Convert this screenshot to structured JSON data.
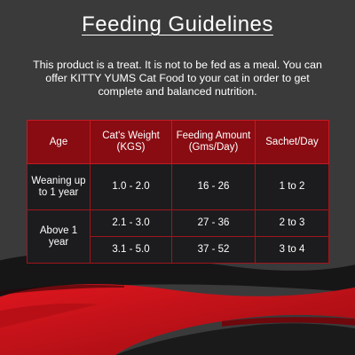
{
  "title": "Feeding Guidelines",
  "intro": "This product is a treat. It is not to be fed as a meal. You can offer KITTY YUMS Cat Food to your cat in order to get complete and balanced nutrition.",
  "table": {
    "headers": [
      "Age",
      "Cat's Weight (KGS)",
      "Feeding Amount (Gms/Day)",
      "Sachet/Day"
    ],
    "rows": [
      {
        "age": "Weaning up to 1 year",
        "weight": "1.0 - 2.0",
        "amount": "16 - 26",
        "sachet": "1 to 2"
      },
      {
        "age": "Above 1 year",
        "weight": "2.1 - 3.0",
        "amount": "27 - 36",
        "sachet": "2 to 3"
      },
      {
        "weight": "3.1 - 5.0",
        "amount": "37 - 52",
        "sachet": "3 to 4"
      }
    ]
  },
  "colors": {
    "background": "#3a3a3b",
    "header_red": "#880c12",
    "border_red": "#c31b22",
    "cell_dark": "#1c1c1e",
    "brush_red": "#d4151d"
  }
}
